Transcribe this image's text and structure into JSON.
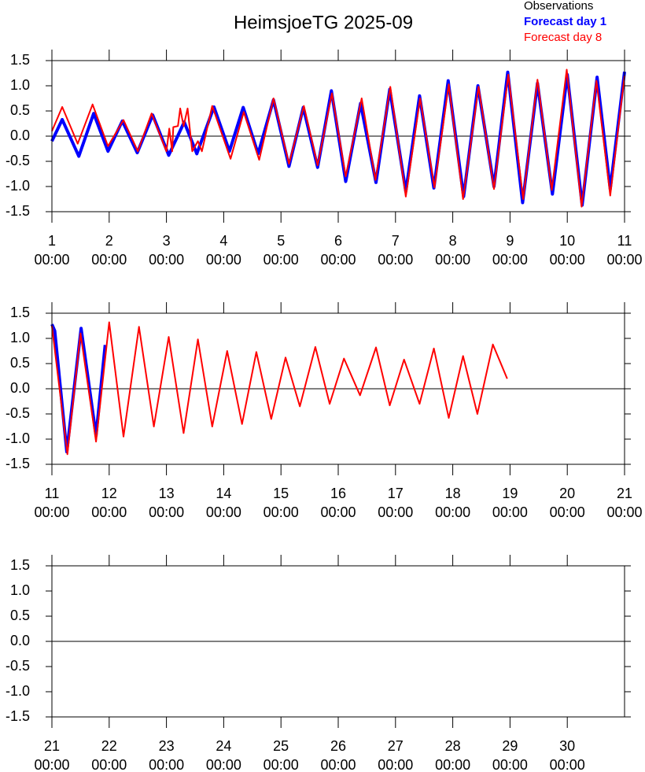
{
  "chart_data": [
    {
      "type": "line",
      "title": "HeimsjoeTG 2025-09",
      "legend": "top-right",
      "xlim": [
        1,
        11
      ],
      "ylim": [
        -1.5,
        1.5
      ],
      "hline": 0,
      "yticks": [
        -1.5,
        -1.0,
        -0.5,
        0.0,
        0.5,
        1.0,
        1.5
      ],
      "xticks": [
        {
          "value": 1,
          "label": [
            "1",
            "00:00"
          ]
        },
        {
          "value": 2,
          "label": [
            "2",
            "00:00"
          ]
        },
        {
          "value": 3,
          "label": [
            "3",
            "00:00"
          ]
        },
        {
          "value": 4,
          "label": [
            "4",
            "00:00"
          ]
        },
        {
          "value": 5,
          "label": [
            "5",
            "00:00"
          ]
        },
        {
          "value": 6,
          "label": [
            "6",
            "00:00"
          ]
        },
        {
          "value": 7,
          "label": [
            "7",
            "00:00"
          ]
        },
        {
          "value": 8,
          "label": [
            "8",
            "00:00"
          ]
        },
        {
          "value": 9,
          "label": [
            "9",
            "00:00"
          ]
        },
        {
          "value": 10,
          "label": [
            "10",
            "00:00"
          ]
        },
        {
          "value": 11,
          "label": [
            "11",
            "00:00"
          ]
        }
      ],
      "series": [
        {
          "name": "Observations",
          "color": "#000000",
          "x": [],
          "values": []
        },
        {
          "name": "Forecast day 1",
          "color": "#0000ff",
          "x": [
            1.0,
            1.18,
            1.47,
            1.73,
            1.98,
            2.23,
            2.49,
            2.76,
            3.04,
            3.31,
            3.53,
            3.83,
            4.1,
            4.34,
            4.6,
            4.87,
            5.14,
            5.39,
            5.64,
            5.88,
            6.13,
            6.39,
            6.66,
            6.9,
            7.18,
            7.42,
            7.67,
            7.92,
            8.19,
            8.44,
            8.72,
            8.96,
            9.22,
            9.48,
            9.74,
            10.0,
            10.26,
            10.52,
            10.75,
            11.0
          ],
          "values": [
            -0.1,
            0.33,
            -0.4,
            0.45,
            -0.3,
            0.3,
            -0.33,
            0.42,
            -0.38,
            0.28,
            -0.35,
            0.58,
            -0.3,
            0.57,
            -0.35,
            0.72,
            -0.6,
            0.57,
            -0.62,
            0.9,
            -0.9,
            0.65,
            -0.92,
            0.93,
            -1.1,
            0.8,
            -1.03,
            1.1,
            -1.2,
            1.0,
            -1.0,
            1.27,
            -1.32,
            1.05,
            -1.15,
            1.22,
            -1.37,
            1.17,
            -1.05,
            1.28
          ]
        },
        {
          "name": "Forecast day 8",
          "color": "#ff0000",
          "x": [
            1.0,
            1.18,
            1.45,
            1.71,
            1.98,
            2.25,
            2.5,
            2.74,
            3.0,
            3.05,
            3.1,
            3.12,
            3.2,
            3.24,
            3.3,
            3.37,
            3.45,
            3.55,
            3.62,
            3.8,
            4.12,
            4.35,
            4.62,
            4.87,
            5.14,
            5.4,
            5.64,
            5.89,
            6.13,
            6.41,
            6.65,
            6.91,
            7.18,
            7.43,
            7.68,
            7.93,
            8.18,
            8.45,
            8.72,
            8.97,
            9.23,
            9.48,
            9.73,
            9.99,
            10.25,
            10.51,
            10.75,
            11.0
          ],
          "values": [
            0.1,
            0.58,
            -0.15,
            0.63,
            -0.2,
            0.32,
            -0.3,
            0.45,
            -0.3,
            0.15,
            -0.3,
            0.18,
            0.2,
            0.55,
            0.2,
            0.55,
            -0.3,
            -0.1,
            -0.3,
            0.6,
            -0.45,
            0.48,
            -0.47,
            0.75,
            -0.55,
            0.6,
            -0.58,
            0.85,
            -0.8,
            0.75,
            -0.87,
            0.98,
            -1.2,
            0.75,
            -1.02,
            1.03,
            -1.25,
            0.98,
            -1.05,
            1.22,
            -1.25,
            1.12,
            -1.07,
            1.32,
            -1.4,
            1.1,
            -1.18,
            1.2
          ]
        }
      ]
    },
    {
      "type": "line",
      "xlim": [
        11,
        21
      ],
      "ylim": [
        -1.5,
        1.5
      ],
      "hline": 0,
      "yticks": [
        -1.5,
        -1.0,
        -0.5,
        0.0,
        0.5,
        1.0,
        1.5
      ],
      "xticks": [
        {
          "value": 11,
          "label": [
            "11",
            "00:00"
          ]
        },
        {
          "value": 12,
          "label": [
            "12",
            "00:00"
          ]
        },
        {
          "value": 13,
          "label": [
            "13",
            "00:00"
          ]
        },
        {
          "value": 14,
          "label": [
            "14",
            "00:00"
          ]
        },
        {
          "value": 15,
          "label": [
            "15",
            "00:00"
          ]
        },
        {
          "value": 16,
          "label": [
            "16",
            "00:00"
          ]
        },
        {
          "value": 17,
          "label": [
            "17",
            "00:00"
          ]
        },
        {
          "value": 18,
          "label": [
            "18",
            "00:00"
          ]
        },
        {
          "value": 19,
          "label": [
            "19",
            "00:00"
          ]
        },
        {
          "value": 20,
          "label": [
            "20",
            "00:00"
          ]
        },
        {
          "value": 21,
          "label": [
            "21",
            "00:00"
          ]
        }
      ],
      "series": [
        {
          "color": "#0000ff",
          "x": [
            11.0,
            11.05,
            11.26,
            11.51,
            11.77,
            11.93
          ],
          "values": [
            1.28,
            1.15,
            -1.25,
            1.2,
            -0.93,
            0.87
          ]
        },
        {
          "color": "#ff0000",
          "x": [
            11.0,
            11.27,
            11.5,
            11.77,
            12.0,
            12.25,
            12.52,
            12.78,
            13.04,
            13.3,
            13.55,
            13.8,
            14.06,
            14.32,
            14.57,
            14.83,
            15.08,
            15.33,
            15.6,
            15.85,
            16.1,
            16.38,
            16.66,
            16.9,
            17.15,
            17.42,
            17.67,
            17.93,
            18.18,
            18.43,
            18.7,
            18.95
          ],
          "values": [
            1.25,
            -1.3,
            1.1,
            -1.05,
            1.32,
            -0.95,
            1.23,
            -0.75,
            1.03,
            -0.88,
            0.98,
            -0.75,
            0.75,
            -0.7,
            0.73,
            -0.6,
            0.62,
            -0.35,
            0.83,
            -0.3,
            0.6,
            -0.13,
            0.82,
            -0.33,
            0.58,
            -0.3,
            0.8,
            -0.58,
            0.65,
            -0.5,
            0.88,
            0.2
          ]
        }
      ]
    },
    {
      "type": "line",
      "xlim": [
        21,
        31
      ],
      "ylim": [
        -1.5,
        1.5
      ],
      "hline": 0,
      "yticks": [
        -1.5,
        -1.0,
        -0.5,
        0.0,
        0.5,
        1.0,
        1.5
      ],
      "xticks": [
        {
          "value": 21,
          "label": [
            "21",
            "00:00"
          ]
        },
        {
          "value": 22,
          "label": [
            "22",
            "00:00"
          ]
        },
        {
          "value": 23,
          "label": [
            "23",
            "00:00"
          ]
        },
        {
          "value": 24,
          "label": [
            "24",
            "00:00"
          ]
        },
        {
          "value": 25,
          "label": [
            "25",
            "00:00"
          ]
        },
        {
          "value": 26,
          "label": [
            "26",
            "00:00"
          ]
        },
        {
          "value": 27,
          "label": [
            "27",
            "00:00"
          ]
        },
        {
          "value": 28,
          "label": [
            "28",
            "00:00"
          ]
        },
        {
          "value": 29,
          "label": [
            "29",
            "00:00"
          ]
        },
        {
          "value": 30,
          "label": [
            "30",
            "00:00"
          ]
        }
      ],
      "series": []
    }
  ]
}
